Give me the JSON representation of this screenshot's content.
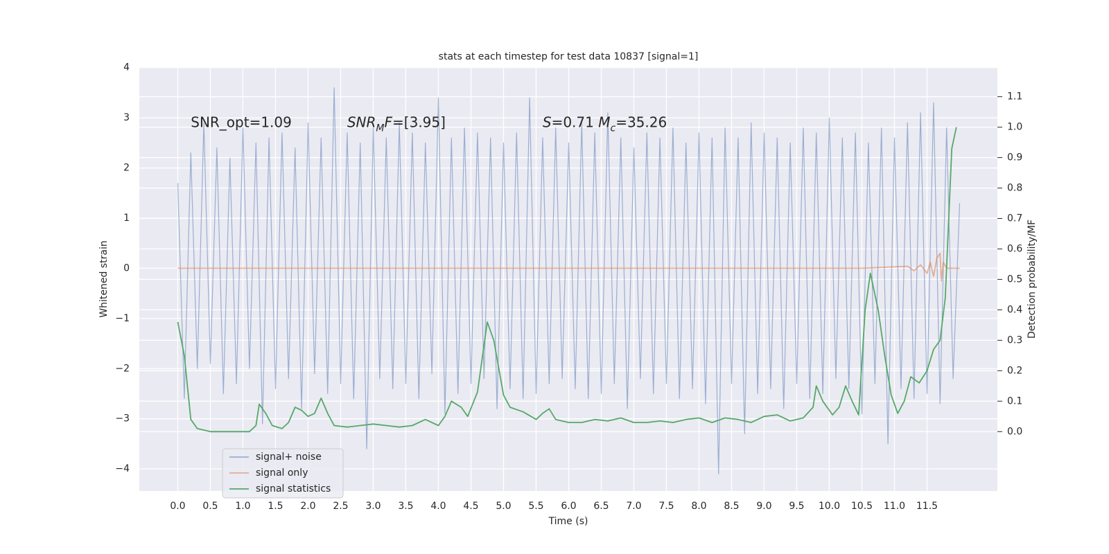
{
  "chart_data": {
    "type": "line",
    "title": "stats at each timestep for test data 10837 [signal=1]",
    "x_label": "Time (s)",
    "y_label": "Whitened strain",
    "y2_label": "Detection probability/MF",
    "grid": true,
    "legend": "lower left",
    "xlim": [
      -0.59,
      12.58
    ],
    "ylim": [
      -4.44,
      4.01
    ],
    "y2lim": [
      -0.195,
      1.197
    ],
    "xticks": [
      {
        "value": 0,
        "label": "0.0"
      },
      0.5,
      {
        "value": 1,
        "label": "1.0"
      },
      1.5,
      {
        "value": 2,
        "label": "2.0"
      },
      2.5,
      {
        "value": 3,
        "label": "3.0"
      },
      3.5,
      {
        "value": 4,
        "label": "4.0"
      },
      4.5,
      {
        "value": 5,
        "label": "5.0"
      },
      5.5,
      {
        "value": 6,
        "label": "6.0"
      },
      6.5,
      {
        "value": 7,
        "label": "7.0"
      },
      7.5,
      {
        "value": 8,
        "label": "8.0"
      },
      8.5,
      {
        "value": 9,
        "label": "9.0"
      },
      9.5,
      {
        "value": 10,
        "label": "10.0"
      },
      10.5,
      {
        "value": 11,
        "label": "11.0"
      },
      11.5
    ],
    "yticks": [
      {
        "value": -4,
        "label": "−4"
      },
      {
        "value": -3,
        "label": "−3"
      },
      {
        "value": -2,
        "label": "−2"
      },
      {
        "value": -1,
        "label": "−1"
      },
      0,
      1,
      2,
      3,
      4
    ],
    "y2ticks": [
      {
        "value": 0,
        "label": "0.0"
      },
      0.1,
      0.2,
      0.3,
      0.4,
      0.5,
      0.6,
      0.7,
      0.8,
      0.9,
      {
        "value": 1,
        "label": "1.0"
      },
      1.1
    ],
    "annotations": [
      [
        {
          "text": "SNR_opt=1.09"
        }
      ],
      [
        {
          "text": "SNR",
          "italic": true
        },
        {
          "text": "M",
          "italic": true,
          "sub": true
        },
        {
          "text": "F",
          "italic": true
        },
        {
          "text": "=[3.95]"
        }
      ],
      [
        {
          "text": "S",
          "italic": true
        },
        {
          "text": "=0.71   "
        },
        {
          "text": "M",
          "italic": true
        },
        {
          "text": "c",
          "italic": true,
          "sub": true
        },
        {
          "text": "=35.26"
        }
      ]
    ],
    "series": [
      {
        "name": "signal+ noise",
        "color": "#4c72b0",
        "opacity": 0.5,
        "x": [
          0,
          0.1,
          0.2,
          0.3,
          0.4,
          0.5,
          0.6,
          0.7,
          0.8,
          0.9,
          1.0,
          1.1,
          1.2,
          1.3,
          1.4,
          1.5,
          1.6,
          1.7,
          1.8,
          1.9,
          2.0,
          2.1,
          2.2,
          2.3,
          2.4,
          2.5,
          2.6,
          2.7,
          2.8,
          2.9,
          3.0,
          3.1,
          3.2,
          3.3,
          3.4,
          3.5,
          3.6,
          3.7,
          3.8,
          3.9,
          4.0,
          4.1,
          4.2,
          4.3,
          4.4,
          4.5,
          4.6,
          4.7,
          4.8,
          4.9,
          5.0,
          5.1,
          5.2,
          5.3,
          5.4,
          5.5,
          5.6,
          5.7,
          5.8,
          5.9,
          6.0,
          6.1,
          6.2,
          6.3,
          6.4,
          6.5,
          6.6,
          6.7,
          6.8,
          6.9,
          7.0,
          7.1,
          7.2,
          7.3,
          7.4,
          7.5,
          7.6,
          7.7,
          7.8,
          7.9,
          8.0,
          8.1,
          8.2,
          8.3,
          8.4,
          8.5,
          8.6,
          8.7,
          8.8,
          8.9,
          9.0,
          9.1,
          9.2,
          9.3,
          9.4,
          9.5,
          9.6,
          9.7,
          9.8,
          9.9,
          10.0,
          10.1,
          10.2,
          10.3,
          10.4,
          10.5,
          10.6,
          10.7,
          10.8,
          10.9,
          11.0,
          11.1,
          11.2,
          11.3,
          11.4,
          11.5,
          11.6,
          11.7,
          11.8,
          11.9,
          12.0
        ],
        "values": [
          1.7,
          -2.6,
          2.3,
          -2.0,
          2.9,
          -1.9,
          2.4,
          -2.5,
          2.2,
          -2.3,
          2.8,
          -2.0,
          2.5,
          -3.1,
          2.6,
          -2.4,
          2.7,
          -2.2,
          2.4,
          -2.8,
          2.9,
          -2.1,
          2.6,
          -2.5,
          3.6,
          -2.3,
          2.7,
          -2.6,
          2.5,
          -3.6,
          2.8,
          -2.2,
          2.6,
          -2.4,
          2.9,
          -2.3,
          2.7,
          -2.6,
          2.5,
          -2.1,
          3.4,
          -2.9,
          2.6,
          -2.5,
          2.8,
          -2.3,
          2.7,
          -2.2,
          2.6,
          -2.8,
          2.5,
          -2.4,
          2.7,
          -2.6,
          3.4,
          -2.5,
          2.6,
          -2.3,
          2.8,
          -2.2,
          2.5,
          -2.4,
          2.9,
          -2.6,
          2.7,
          -2.5,
          3.1,
          -2.3,
          2.6,
          -2.8,
          2.4,
          -2.2,
          2.7,
          -2.5,
          2.6,
          -2.3,
          2.8,
          -2.6,
          2.5,
          -2.4,
          2.7,
          -2.7,
          2.6,
          -4.1,
          2.8,
          -2.3,
          2.6,
          -3.3,
          2.9,
          -2.5,
          2.7,
          -2.4,
          2.6,
          -2.8,
          2.5,
          -2.3,
          2.8,
          -2.6,
          2.7,
          -2.5,
          3.0,
          -2.2,
          2.6,
          -2.4,
          2.7,
          -2.9,
          2.5,
          -2.3,
          2.8,
          -3.5,
          2.6,
          -2.4,
          2.9,
          -2.6,
          3.1,
          -2.5,
          3.3,
          -2.7,
          2.8,
          -2.2,
          1.3
        ]
      },
      {
        "name": "signal only",
        "color": "#dd8452",
        "opacity": 0.6,
        "x": [
          0,
          10.5,
          11.2,
          11.3,
          11.4,
          11.5,
          11.55,
          11.6,
          11.65,
          11.7,
          11.72,
          11.75,
          11.8,
          12.0
        ],
        "values": [
          0,
          0,
          0.04,
          -0.05,
          0.07,
          -0.1,
          0.12,
          -0.16,
          0.2,
          0.3,
          -0.25,
          0.12,
          0.0,
          0.0
        ]
      },
      {
        "name": "signal statistics",
        "color": "#55a868",
        "opacity": 1,
        "axis": "y2",
        "x": [
          0,
          0.1,
          0.2,
          0.3,
          0.5,
          0.7,
          1.0,
          1.1,
          1.2,
          1.25,
          1.35,
          1.45,
          1.6,
          1.7,
          1.8,
          1.9,
          2.0,
          2.1,
          2.2,
          2.3,
          2.4,
          2.6,
          2.8,
          3.0,
          3.2,
          3.4,
          3.6,
          3.8,
          4.0,
          4.1,
          4.2,
          4.35,
          4.45,
          4.6,
          4.75,
          4.85,
          5.0,
          5.1,
          5.3,
          5.5,
          5.6,
          5.7,
          5.8,
          6.0,
          6.2,
          6.4,
          6.6,
          6.8,
          7.0,
          7.2,
          7.4,
          7.6,
          7.8,
          8.0,
          8.2,
          8.4,
          8.6,
          8.8,
          9.0,
          9.2,
          9.4,
          9.6,
          9.75,
          9.8,
          9.9,
          10.05,
          10.15,
          10.25,
          10.35,
          10.45,
          10.55,
          10.63,
          10.75,
          10.85,
          10.95,
          11.05,
          11.15,
          11.25,
          11.38,
          11.5,
          11.6,
          11.7,
          11.78,
          11.88,
          11.95
        ],
        "values": [
          0.36,
          0.25,
          0.04,
          0.01,
          0.0,
          0.0,
          0.0,
          0.0,
          0.02,
          0.09,
          0.06,
          0.02,
          0.01,
          0.03,
          0.08,
          0.07,
          0.05,
          0.06,
          0.11,
          0.06,
          0.02,
          0.015,
          0.02,
          0.025,
          0.02,
          0.015,
          0.02,
          0.04,
          0.02,
          0.05,
          0.1,
          0.08,
          0.05,
          0.13,
          0.36,
          0.3,
          0.12,
          0.08,
          0.065,
          0.04,
          0.06,
          0.075,
          0.04,
          0.03,
          0.03,
          0.04,
          0.035,
          0.045,
          0.03,
          0.03,
          0.035,
          0.03,
          0.04,
          0.045,
          0.03,
          0.045,
          0.04,
          0.03,
          0.05,
          0.055,
          0.035,
          0.045,
          0.08,
          0.15,
          0.1,
          0.055,
          0.08,
          0.15,
          0.1,
          0.055,
          0.4,
          0.52,
          0.4,
          0.25,
          0.12,
          0.06,
          0.1,
          0.18,
          0.16,
          0.2,
          0.27,
          0.3,
          0.44,
          0.93,
          1.0
        ]
      }
    ]
  }
}
